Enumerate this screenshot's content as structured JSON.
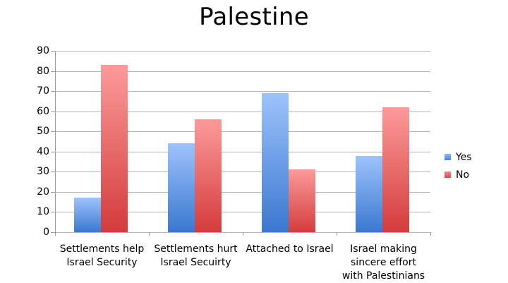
{
  "chart_data": {
    "type": "bar",
    "title": "Palestine",
    "xlabel": "",
    "ylabel": "",
    "ylim": [
      0,
      90
    ],
    "yticks": [
      0,
      10,
      20,
      30,
      40,
      50,
      60,
      70,
      80,
      90
    ],
    "grid": true,
    "legend_position": "right",
    "categories": [
      "Settlements help Israel Security",
      "Settlements hurt Israel Secuirty",
      "Attached to Israel",
      "Israel making sincere effort with Palestinians"
    ],
    "series": [
      {
        "name": "Yes",
        "color": "#5b8fe0",
        "values": [
          17,
          44,
          69,
          38
        ]
      },
      {
        "name": "No",
        "color": "#e05a5a",
        "values": [
          83,
          56,
          31,
          62
        ]
      }
    ]
  },
  "labels": {
    "title": "Palestine",
    "yticks": [
      "0",
      "10",
      "20",
      "30",
      "40",
      "50",
      "60",
      "70",
      "80",
      "90"
    ],
    "categories": [
      [
        "Settlements help",
        "Israel Security"
      ],
      [
        "Settlements hurt",
        "Israel Secuirty"
      ],
      [
        "Attached to Israel"
      ],
      [
        "Israel making",
        "sincere effort",
        "with Palestinians"
      ]
    ],
    "legend": [
      "Yes",
      "No"
    ]
  }
}
